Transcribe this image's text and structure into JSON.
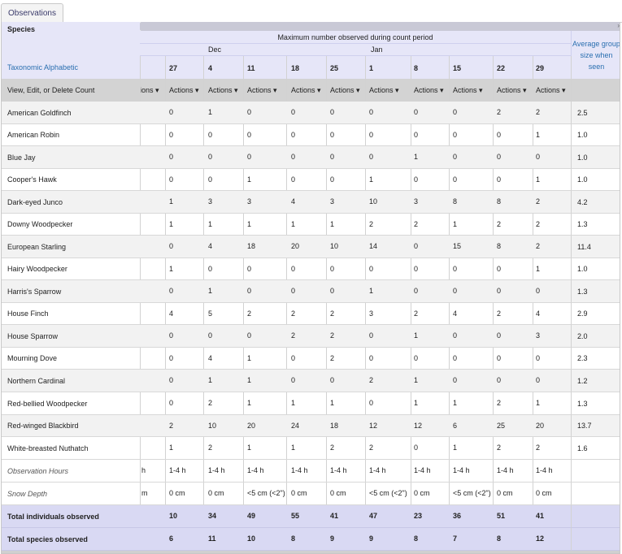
{
  "tab": {
    "label": "Observations"
  },
  "header": {
    "species_label": "Species",
    "taxonomic_link": "Taxonomic Alphabetic",
    "view_edit_delete": "View, Edit, or Delete Count",
    "max_observed": "Maximum number observed during count period",
    "months": [
      "Dec",
      "Jan"
    ],
    "days": [
      "27",
      "4",
      "11",
      "18",
      "25",
      "1",
      "8",
      "15",
      "22",
      "29"
    ],
    "partial_actions": "ions",
    "actions_label": "Actions",
    "average_label": "Average group size when seen"
  },
  "rows": [
    {
      "species": "American Goldfinch",
      "values": [
        "0",
        "1",
        "0",
        "0",
        "0",
        "0",
        "0",
        "0",
        "2",
        "2"
      ],
      "avg": "2.5"
    },
    {
      "species": "American Robin",
      "values": [
        "0",
        "0",
        "0",
        "0",
        "0",
        "0",
        "0",
        "0",
        "0",
        "1"
      ],
      "avg": "1.0"
    },
    {
      "species": "Blue Jay",
      "values": [
        "0",
        "0",
        "0",
        "0",
        "0",
        "0",
        "1",
        "0",
        "0",
        "0"
      ],
      "avg": "1.0"
    },
    {
      "species": "Cooper's Hawk",
      "values": [
        "0",
        "0",
        "1",
        "0",
        "0",
        "1",
        "0",
        "0",
        "0",
        "1"
      ],
      "avg": "1.0"
    },
    {
      "species": "Dark-eyed Junco",
      "values": [
        "1",
        "3",
        "3",
        "4",
        "3",
        "10",
        "3",
        "8",
        "8",
        "2"
      ],
      "avg": "4.2"
    },
    {
      "species": "Downy Woodpecker",
      "values": [
        "1",
        "1",
        "1",
        "1",
        "1",
        "2",
        "2",
        "1",
        "2",
        "2"
      ],
      "avg": "1.3"
    },
    {
      "species": "European Starling",
      "values": [
        "0",
        "4",
        "18",
        "20",
        "10",
        "14",
        "0",
        "15",
        "8",
        "2"
      ],
      "avg": "11.4"
    },
    {
      "species": "Hairy Woodpecker",
      "values": [
        "1",
        "0",
        "0",
        "0",
        "0",
        "0",
        "0",
        "0",
        "0",
        "1"
      ],
      "avg": "1.0"
    },
    {
      "species": "Harris's Sparrow",
      "values": [
        "0",
        "1",
        "0",
        "0",
        "0",
        "1",
        "0",
        "0",
        "0",
        "0"
      ],
      "avg": "1.3"
    },
    {
      "species": "House Finch",
      "values": [
        "4",
        "5",
        "2",
        "2",
        "2",
        "3",
        "2",
        "4",
        "2",
        "4"
      ],
      "avg": "2.9"
    },
    {
      "species": "House Sparrow",
      "values": [
        "0",
        "0",
        "0",
        "2",
        "2",
        "0",
        "1",
        "0",
        "0",
        "3"
      ],
      "avg": "2.0"
    },
    {
      "species": "Mourning Dove",
      "values": [
        "0",
        "4",
        "1",
        "0",
        "2",
        "0",
        "0",
        "0",
        "0",
        "0"
      ],
      "avg": "2.3"
    },
    {
      "species": "Northern Cardinal",
      "values": [
        "0",
        "1",
        "1",
        "0",
        "0",
        "2",
        "1",
        "0",
        "0",
        "0"
      ],
      "avg": "1.2"
    },
    {
      "species": "Red-bellied Woodpecker",
      "values": [
        "0",
        "2",
        "1",
        "1",
        "1",
        "0",
        "1",
        "1",
        "2",
        "1"
      ],
      "avg": "1.3"
    },
    {
      "species": "Red-winged Blackbird",
      "values": [
        "2",
        "10",
        "20",
        "24",
        "18",
        "12",
        "12",
        "6",
        "25",
        "20"
      ],
      "avg": "13.7"
    },
    {
      "species": "White-breasted Nuthatch",
      "values": [
        "1",
        "2",
        "1",
        "1",
        "2",
        "2",
        "0",
        "1",
        "2",
        "2"
      ],
      "avg": "1.6"
    }
  ],
  "observation_hours": {
    "label": "Observation Hours",
    "partial": "h",
    "values": [
      "1-4 h",
      "1-4 h",
      "1-4 h",
      "1-4 h",
      "1-4 h",
      "1-4 h",
      "1-4 h",
      "1-4 h",
      "1-4 h",
      "1-4 h"
    ]
  },
  "snow_depth": {
    "label": "Snow Depth",
    "partial": "m",
    "values": [
      "0 cm",
      "0 cm",
      "<5 cm (<2\")",
      "0 cm",
      "0 cm",
      "<5 cm (<2\")",
      "0 cm",
      "<5 cm (<2\")",
      "0 cm",
      "0 cm"
    ]
  },
  "totals": {
    "individuals_label": "Total individuals observed",
    "individuals": [
      "10",
      "34",
      "49",
      "55",
      "41",
      "47",
      "23",
      "36",
      "51",
      "41"
    ],
    "species_label": "Total species observed",
    "species": [
      "6",
      "11",
      "10",
      "8",
      "9",
      "9",
      "8",
      "7",
      "8",
      "12"
    ]
  }
}
